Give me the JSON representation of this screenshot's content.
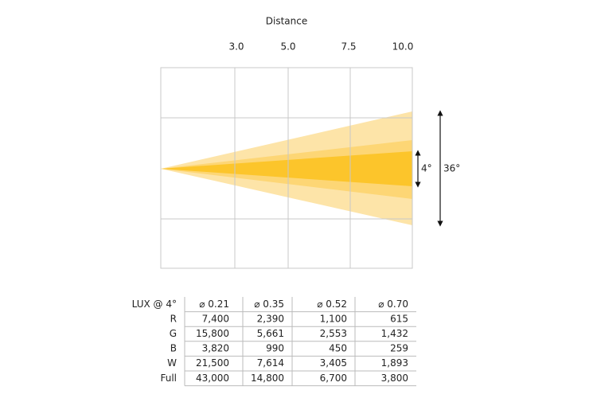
{
  "diagram": {
    "title": "Distance",
    "distances": [
      "3.0",
      "5.0",
      "7.5",
      "10.0"
    ],
    "beams": [
      "4°",
      "36°"
    ]
  },
  "table": {
    "header": [
      "LUX @ 4°",
      "⌀ 0.21",
      "⌀ 0.35",
      "⌀ 0.52",
      "⌀ 0.70"
    ],
    "rows": [
      [
        "R",
        "7,400",
        "2,390",
        "1,100",
        "615"
      ],
      [
        "G",
        "15,800",
        "5,661",
        "2,553",
        "1,432"
      ],
      [
        "B",
        "3,820",
        "990",
        "450",
        "259"
      ],
      [
        "W",
        "21,500",
        "7,614",
        "3,405",
        "1,893"
      ],
      [
        "Full",
        "43,000",
        "14,800",
        "6,700",
        "3,800"
      ]
    ]
  }
}
